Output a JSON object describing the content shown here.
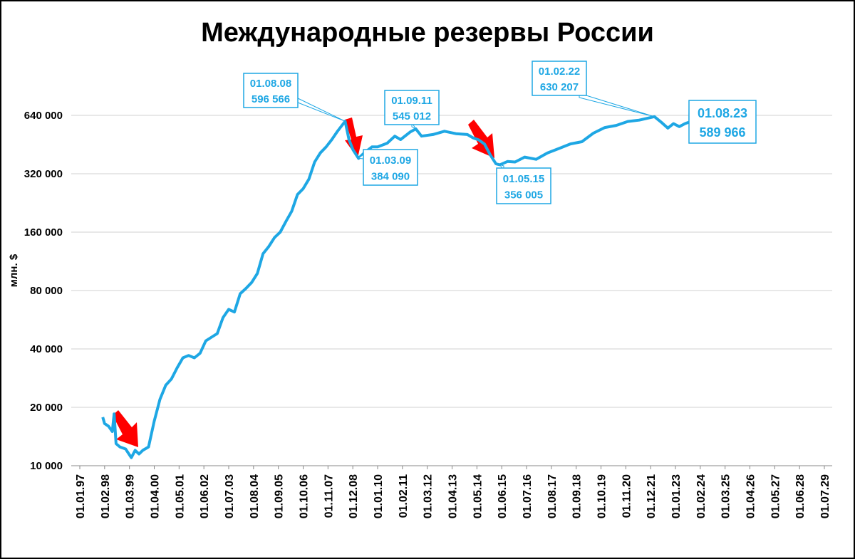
{
  "chart_data": {
    "type": "line",
    "title": "Международные резервы России",
    "y_label": "млн. $",
    "color": "#1ea7e4",
    "log_scale": true,
    "grid": true,
    "ylim": [
      10000,
      640000
    ],
    "yticks": [
      {
        "value": 10000,
        "label": "10 000"
      },
      {
        "value": 20000,
        "label": "20 000"
      },
      {
        "value": 40000,
        "label": "40 000"
      },
      {
        "value": 80000,
        "label": "80 000"
      },
      {
        "value": 160000,
        "label": "160 000"
      },
      {
        "value": 320000,
        "label": "320 000"
      },
      {
        "value": 640000,
        "label": "640 000"
      }
    ],
    "xlim": [
      "01.01.97",
      "01.07.29"
    ],
    "xticks": [
      "01.01.97",
      "01.02.98",
      "01.03.99",
      "01.04.00",
      "01.05.01",
      "01.06.02",
      "01.07.03",
      "01.08.04",
      "01.09.05",
      "01.10.06",
      "01.11.07",
      "01.12.08",
      "01.01.10",
      "01.02.11",
      "01.03.12",
      "01.04.13",
      "01.05.14",
      "01.06.15",
      "01.07.16",
      "01.08.17",
      "01.09.18",
      "01.10.19",
      "01.11.20",
      "01.12.21",
      "01.01.23",
      "01.02.24",
      "01.03.25",
      "01.04.26",
      "01.05.27",
      "01.06.28",
      "01.07.29"
    ],
    "x": [
      "01.01.98",
      "01.02.98",
      "01.04.98",
      "01.06.98",
      "01.07.98",
      "01.08.98",
      "01.10.98",
      "01.01.99",
      "01.04.99",
      "01.06.99",
      "01.08.99",
      "01.10.99",
      "01.01.00",
      "01.04.00",
      "01.07.00",
      "01.10.00",
      "01.01.01",
      "01.04.01",
      "01.07.01",
      "01.10.01",
      "01.01.02",
      "01.04.02",
      "01.07.02",
      "01.10.02",
      "01.01.03",
      "01.04.03",
      "01.07.03",
      "01.10.03",
      "01.01.04",
      "01.04.04",
      "01.07.04",
      "01.10.04",
      "01.01.05",
      "01.04.05",
      "01.07.05",
      "01.10.05",
      "01.01.06",
      "01.04.06",
      "01.07.06",
      "01.10.06",
      "01.01.07",
      "01.04.07",
      "01.07.07",
      "01.10.07",
      "01.01.08",
      "01.04.08",
      "01.08.08",
      "01.10.08",
      "01.12.08",
      "01.03.09",
      "01.06.09",
      "01.10.09",
      "01.01.10",
      "01.06.10",
      "01.10.10",
      "01.01.11",
      "01.06.11",
      "01.09.11",
      "01.12.11",
      "01.06.12",
      "01.12.12",
      "01.06.13",
      "01.12.13",
      "01.03.14",
      "01.06.14",
      "01.09.14",
      "01.12.14",
      "01.03.15",
      "01.05.15",
      "01.09.15",
      "01.01.16",
      "01.06.16",
      "01.12.16",
      "01.06.17",
      "01.12.17",
      "01.06.18",
      "01.12.18",
      "01.06.19",
      "01.12.19",
      "01.06.20",
      "01.12.20",
      "01.06.21",
      "01.02.22",
      "01.06.22",
      "01.09.22",
      "01.12.22",
      "01.03.23",
      "01.06.23",
      "01.08.23"
    ],
    "values": [
      17800,
      16500,
      16000,
      15000,
      18500,
      13000,
      12500,
      12200,
      11000,
      12000,
      11500,
      12000,
      12500,
      17000,
      22000,
      26000,
      28000,
      32000,
      36000,
      37000,
      36000,
      38000,
      44000,
      46000,
      48000,
      58000,
      64000,
      62000,
      77000,
      82000,
      88000,
      98000,
      124000,
      135000,
      150000,
      160000,
      182000,
      205000,
      250000,
      268000,
      300000,
      368000,
      410000,
      440000,
      480000,
      530000,
      596566,
      480000,
      427000,
      384090,
      410000,
      440000,
      440000,
      460000,
      500000,
      480000,
      525000,
      545012,
      500000,
      510000,
      530000,
      515000,
      510000,
      490000,
      478000,
      455000,
      400000,
      360000,
      356005,
      370000,
      368000,
      390000,
      380000,
      410000,
      432000,
      456000,
      468000,
      518000,
      554000,
      568000,
      595000,
      605000,
      630207,
      585000,
      550000,
      580000,
      560000,
      580000,
      589966
    ],
    "annotations": [
      {
        "date": "01.08.08",
        "value": "596 566"
      },
      {
        "date": "01.03.09",
        "value": "384 090"
      },
      {
        "date": "01.09.11",
        "value": "545 012"
      },
      {
        "date": "01.05.15",
        "value": "356 005"
      },
      {
        "date": "01.02.22",
        "value": "630 207"
      },
      {
        "date": "01.08.23",
        "value": "589 966"
      }
    ]
  }
}
